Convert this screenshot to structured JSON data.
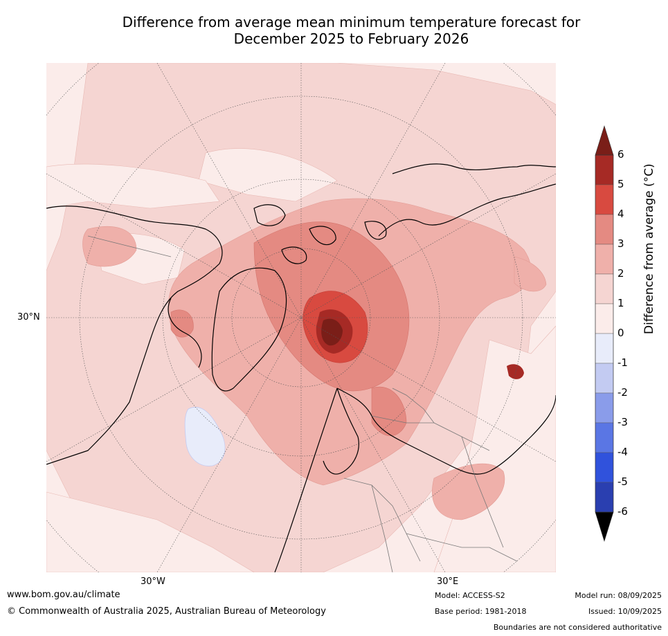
{
  "title": {
    "line1": "Difference from average mean minimum temperature forecast for",
    "line2": "December 2025 to February 2026"
  },
  "map": {
    "projection": "north-polar-stereographic",
    "lat_labels": [
      "30°N"
    ],
    "lon_labels": [
      "30°W",
      "30°E"
    ],
    "features": {
      "strongest_warming_region": "Barents / Kara Sea",
      "cool_anomaly_region": "North Atlantic south of Greenland",
      "secondary_hotspot": "Central Asia"
    }
  },
  "colorbar": {
    "label": "Difference from average (°C)",
    "ticks": [
      "6",
      "5",
      "4",
      "3",
      "2",
      "1",
      "0",
      "-1",
      "-2",
      "-3",
      "-4",
      "-5",
      "-6"
    ],
    "colors": {
      "above_6": "#7a1e18",
      "5_6": "#a62a25",
      "4_5": "#d84a40",
      "3_4": "#e48a82",
      "2_3": "#efb0aa",
      "1_2": "#f5d5d2",
      "0_1": "#fbecea",
      "-1_0": "#e8ecfa",
      "-2_-1": "#c3cbf2",
      "-3_-2": "#8a9cea",
      "-4_-3": "#5a76e4",
      "-5_-4": "#3052dc",
      "-6_-5": "#2a3fb0",
      "below_-6": "#1e2d80"
    }
  },
  "footer": {
    "website": "www.bom.gov.au/climate",
    "copyright": "© Commonwealth of Australia 2025, Australian Bureau of Meteorology",
    "model": "Model: ACCESS-S2",
    "base_period": "Base period: 1981-2018",
    "model_run": "Model run: 08/09/2025",
    "issued": "Issued: 10/09/2025",
    "disclaimer": "Boundaries are not considered authoritative"
  }
}
